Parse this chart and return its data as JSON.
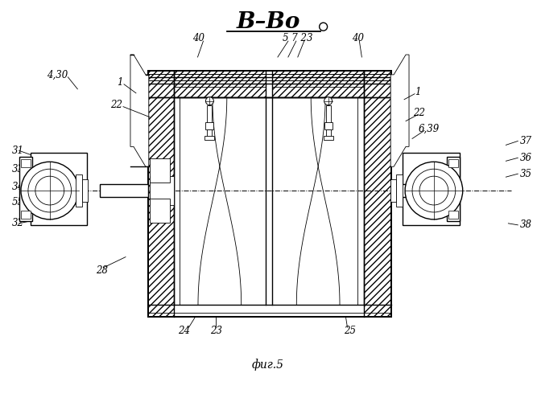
{
  "title": "В–Во",
  "subtitle": "фиг.5",
  "bg_color": "#ffffff",
  "line_color": "#000000",
  "figsize": [
    6.67,
    5.0
  ],
  "dpi": 100
}
